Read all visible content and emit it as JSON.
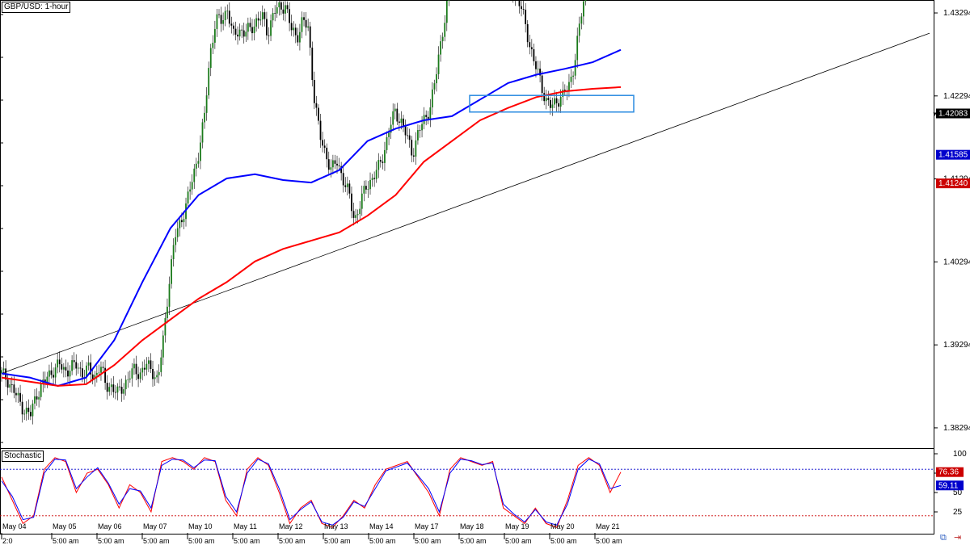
{
  "chart_data": [
    {
      "type": "candlestick",
      "title": "GBP/USD: 1-hour",
      "ylim": [
        1.3805,
        1.4345
      ],
      "y_ticks": [
        "1.43294",
        "1.42294",
        "1.41294",
        "1.40294",
        "1.39294",
        "1.38294"
      ],
      "y_tick_values": [
        1.43294,
        1.42294,
        1.41294,
        1.40294,
        1.39294,
        1.38294
      ],
      "x_date_labels": [
        "May 04",
        "May 05",
        "May 06",
        "May 07",
        "May 10",
        "May 11",
        "May 12",
        "May 13",
        "May 14",
        "May 17",
        "May 18",
        "May 19",
        "May 20",
        "May 21"
      ],
      "x_time_labels": [
        "2:0",
        "5:00 am",
        "5:00 am",
        "5:00 am",
        "5:00 am",
        "5:00 am",
        "5:00 am",
        "5:00 am",
        "5:00 am",
        "5:00 am",
        "5:00 am",
        "5:00 am",
        "5:00 am",
        "5:00 am"
      ],
      "price_close_path": [
        1.3895,
        1.3888,
        1.3875,
        1.3862,
        1.385,
        1.3845,
        1.387,
        1.388,
        1.3892,
        1.39,
        1.3905,
        1.3898,
        1.3902,
        1.3905,
        1.3895,
        1.39,
        1.389,
        1.3905,
        1.388,
        1.388,
        1.387,
        1.388,
        1.389,
        1.39,
        1.3895,
        1.3905,
        1.39,
        1.3885,
        1.394,
        1.401,
        1.406,
        1.408,
        1.41,
        1.413,
        1.416,
        1.42,
        1.428,
        1.432,
        1.432,
        1.4335,
        1.43,
        1.431,
        1.4305,
        1.431,
        1.432,
        1.4325,
        1.4305,
        1.433,
        1.4335,
        1.434,
        1.431,
        1.43,
        1.432,
        1.431,
        1.423,
        1.418,
        1.416,
        1.414,
        1.415,
        1.413,
        1.411,
        1.408,
        1.41,
        1.412,
        1.413,
        1.414,
        1.416,
        1.419,
        1.421,
        1.42,
        1.418,
        1.416,
        1.4185,
        1.42,
        1.4215,
        1.425,
        1.43,
        1.434,
        1.438,
        1.44,
        1.441,
        1.4412,
        1.4405,
        1.4395,
        1.439,
        1.4385,
        1.4375,
        1.437,
        1.436,
        1.435,
        1.433,
        1.43,
        1.427,
        1.425,
        1.4225,
        1.4215,
        1.4225,
        1.423,
        1.424,
        1.427,
        1.432,
        1.436,
        1.4375,
        1.4365,
        1.437,
        1.439,
        1.44,
        1.441
      ],
      "series": [
        {
          "name": "",
          "color": "#0000ff",
          "values": [
            1.3895,
            1.389,
            1.388,
            1.389,
            1.3935,
            1.4005,
            1.407,
            1.411,
            1.413,
            1.4135,
            1.4128,
            1.4125,
            1.414,
            1.4175,
            1.419,
            1.42,
            1.4205,
            1.4225,
            1.4245,
            1.4255,
            1.4262,
            1.427,
            1.4285
          ]
        },
        {
          "name": "",
          "color": "#ff0000",
          "values": [
            1.389,
            1.3885,
            1.388,
            1.3882,
            1.3905,
            1.3935,
            1.396,
            1.3985,
            1.4005,
            1.403,
            1.4045,
            1.4055,
            1.4065,
            1.4085,
            1.411,
            1.415,
            1.4175,
            1.42,
            1.4215,
            1.4228,
            1.4235,
            1.4238,
            1.424
          ]
        }
      ],
      "current_price_labels": [
        {
          "text": "1.42083",
          "color": "#000000"
        },
        {
          "text": "1.41585",
          "color": "#0000cc"
        },
        {
          "text": "1.41240",
          "color": "#cc0000"
        }
      ],
      "trendline": [
        1.3895,
        1.4305
      ],
      "resistance_box": [
        1.421,
        1.423
      ]
    },
    {
      "type": "line",
      "title": "Stochastic",
      "ylim": [
        0,
        100
      ],
      "y_ticks": [
        "100",
        "75",
        "50",
        "25"
      ],
      "y_tick_values": [
        100,
        75,
        50,
        25
      ],
      "levels": [
        80,
        20
      ],
      "series": [
        {
          "name": "",
          "color": "#ff0000",
          "values": [
            70,
            40,
            10,
            20,
            80,
            95,
            90,
            50,
            75,
            80,
            60,
            30,
            60,
            50,
            25,
            90,
            95,
            90,
            80,
            95,
            90,
            40,
            20,
            80,
            95,
            85,
            50,
            10,
            30,
            40,
            10,
            5,
            20,
            40,
            30,
            60,
            80,
            85,
            90,
            70,
            50,
            20,
            80,
            95,
            90,
            85,
            90,
            30,
            20,
            10,
            30,
            10,
            5,
            40,
            85,
            95,
            85,
            50,
            76.36
          ]
        },
        {
          "name": "",
          "color": "#0000ff",
          "values": [
            65,
            45,
            15,
            18,
            75,
            93,
            92,
            55,
            70,
            82,
            62,
            35,
            55,
            52,
            30,
            85,
            93,
            92,
            82,
            92,
            91,
            45,
            25,
            75,
            93,
            87,
            55,
            15,
            28,
            38,
            12,
            8,
            18,
            38,
            32,
            55,
            78,
            83,
            88,
            72,
            55,
            25,
            75,
            93,
            91,
            86,
            88,
            35,
            22,
            12,
            28,
            12,
            8,
            35,
            80,
            93,
            87,
            55,
            59.11
          ]
        }
      ],
      "current_value_labels": [
        {
          "text": "76.36",
          "color": "#cc0000"
        },
        {
          "text": "59.11",
          "color": "#0000cc"
        }
      ]
    }
  ],
  "ui": {
    "title_label": "GBP/USD: 1-hour",
    "stoch_label": "Stochastic",
    "icons": [
      "chart-link-icon",
      "scroll-right-icon"
    ]
  }
}
